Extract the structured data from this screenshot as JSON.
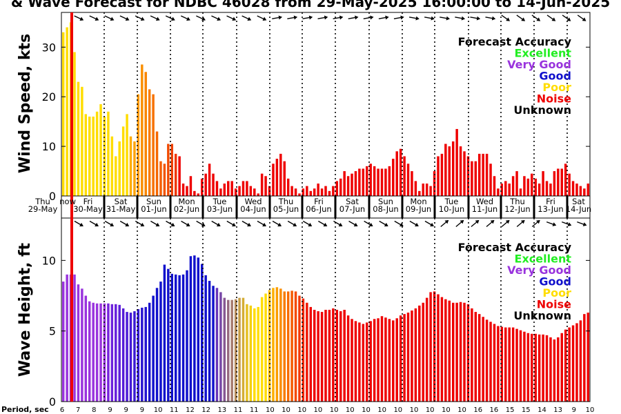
{
  "title": "& Wave Forecast for NDBC 46028 from 29-May-2025 16:00:00 to 14-Jun-2025",
  "period_label": "Period, sec",
  "colors": {
    "Excellent": "#22ee22",
    "Very Good": "#9933dd",
    "Good": "#1111cc",
    "Poor": "#ffdd00",
    "Noise": "#ee0000",
    "Unknown": "#000000",
    "now_line": "#ee0000"
  },
  "chart_data": [
    {
      "type": "bar",
      "ylabel": "Wind Speed, kts",
      "ylim": [
        0,
        37
      ],
      "yticks": [
        "0",
        "10",
        "20",
        "30"
      ],
      "ytick_values": [
        0,
        10,
        20,
        30
      ],
      "legend": {
        "title": "Forecast Accuracy",
        "entries": [
          "Excellent",
          "Very Good",
          "Good",
          "Poor",
          "Noise",
          "Unknown"
        ],
        "placement": "top-right"
      },
      "now_label": "now",
      "day_labels": [
        [
          "Thu",
          "29-May"
        ],
        [
          "Fri",
          "30-May"
        ],
        [
          "Sat",
          "31-May"
        ],
        [
          "Sun",
          "01-Jun"
        ],
        [
          "Mon",
          "02-Jun"
        ],
        [
          "Tue",
          "03-Jun"
        ],
        [
          "Wed",
          "04-Jun"
        ],
        [
          "Thu",
          "05-Jun"
        ],
        [
          "Fri",
          "06-Jun"
        ],
        [
          "Sat",
          "07-Jun"
        ],
        [
          "Sun",
          "08-Jun"
        ],
        [
          "Mon",
          "09-Jun"
        ],
        [
          "Tue",
          "10-Jun"
        ],
        [
          "Wed",
          "11-Jun"
        ],
        [
          "Thu",
          "12-Jun"
        ],
        [
          "Fri",
          "13-Jun"
        ],
        [
          "Sat",
          "14-Jun"
        ]
      ],
      "values": [
        33,
        34,
        35,
        29,
        23,
        22,
        16.5,
        16,
        16,
        17,
        18.5,
        16,
        17,
        12,
        8,
        11,
        14,
        16.5,
        12,
        11,
        20.5,
        26.5,
        25,
        21.5,
        20.5,
        13,
        7,
        6.5,
        10.5,
        10.5,
        8.5,
        8,
        2.5,
        2,
        4,
        1,
        0.5,
        3.5,
        4.5,
        6.5,
        4.5,
        3,
        1.5,
        2.5,
        3,
        3,
        1.5,
        2,
        3,
        3,
        2,
        1.5,
        0.5,
        4.5,
        4,
        2,
        6.5,
        7.5,
        8.5,
        7,
        3.5,
        2,
        1.5,
        0.5,
        1.5,
        2,
        1,
        1.5,
        2.5,
        1.5,
        2,
        1,
        2,
        3,
        3.5,
        5,
        4,
        4.5,
        5,
        5.5,
        5.5,
        6,
        6.5,
        6,
        5.5,
        5.5,
        5.5,
        6,
        7.5,
        9,
        9.5,
        8,
        6.5,
        5,
        3,
        1,
        2.5,
        2.5,
        2,
        5,
        8,
        8.5,
        10.5,
        10,
        11,
        13.5,
        10,
        9,
        8,
        7,
        7,
        8.5,
        8.5,
        8.5,
        6.5,
        4,
        1.5,
        2.5,
        3,
        2.5,
        4,
        5,
        1.5,
        4,
        3.5,
        4.5,
        3.5,
        2.5,
        5,
        3,
        2.5,
        5,
        5.5,
        5.5,
        6.5,
        4.5,
        3,
        2.5,
        2,
        1.5,
        2.5
      ]
    },
    {
      "type": "bar",
      "ylabel": "Wave Height, ft",
      "ylim": [
        0,
        13
      ],
      "yticks": [
        "0",
        "5",
        "10"
      ],
      "ytick_values": [
        0,
        5,
        10
      ],
      "legend": {
        "title": "Forecast Accuracy",
        "entries": [
          "Excellent",
          "Very Good",
          "Good",
          "Poor",
          "Noise",
          "Unknown"
        ],
        "placement": "top-right"
      },
      "period_ticks": [
        "6",
        "7",
        "8",
        "9",
        "9",
        "9",
        "10",
        "11",
        "12",
        "12",
        "13",
        "11",
        "11",
        "10",
        "10",
        "10",
        "10",
        "10",
        "10",
        "10",
        "10",
        "10",
        "10",
        "10",
        "10",
        "10",
        "16",
        "16",
        "15",
        "15",
        "14",
        "13",
        "9",
        "10"
      ],
      "values": [
        8.5,
        9,
        9,
        9,
        8.3,
        8,
        7.5,
        7.1,
        7,
        6.95,
        6.95,
        6.95,
        6.95,
        6.9,
        6.9,
        6.85,
        6.6,
        6.35,
        6.3,
        6.4,
        6.55,
        6.65,
        6.7,
        7,
        7.5,
        8.05,
        8.5,
        9.7,
        9.4,
        9.05,
        9,
        8.95,
        9,
        9.3,
        10.3,
        10.35,
        10.2,
        9.75,
        8.95,
        8.55,
        8.2,
        8.05,
        7.75,
        7.35,
        7.2,
        7.2,
        7.25,
        7.35,
        7.35,
        6.9,
        6.8,
        6.6,
        6.7,
        7.4,
        7.65,
        7.9,
        8.05,
        8.1,
        8,
        7.8,
        7.8,
        7.85,
        7.8,
        7.5,
        7.3,
        7,
        6.7,
        6.5,
        6.4,
        6.35,
        6.5,
        6.5,
        6.6,
        6.5,
        6.4,
        6.5,
        6.1,
        5.85,
        5.7,
        5.6,
        5.5,
        5.6,
        5.7,
        5.85,
        5.9,
        6.05,
        5.95,
        5.85,
        5.75,
        5.9,
        6.1,
        6.2,
        6.3,
        6.45,
        6.6,
        6.8,
        7,
        7.35,
        7.75,
        7.8,
        7.6,
        7.4,
        7.25,
        7.15,
        7,
        7,
        7.05,
        7,
        6.9,
        6.6,
        6.35,
        6.2,
        6,
        5.8,
        5.65,
        5.5,
        5.35,
        5.3,
        5.25,
        5.25,
        5.25,
        5.15,
        5.05,
        4.95,
        4.85,
        4.8,
        4.8,
        4.75,
        4.75,
        4.7,
        4.55,
        4.4,
        4.55,
        4.85,
        5.1,
        5.25,
        5.4,
        5.55,
        5.75,
        6.2,
        6.3
      ]
    }
  ]
}
